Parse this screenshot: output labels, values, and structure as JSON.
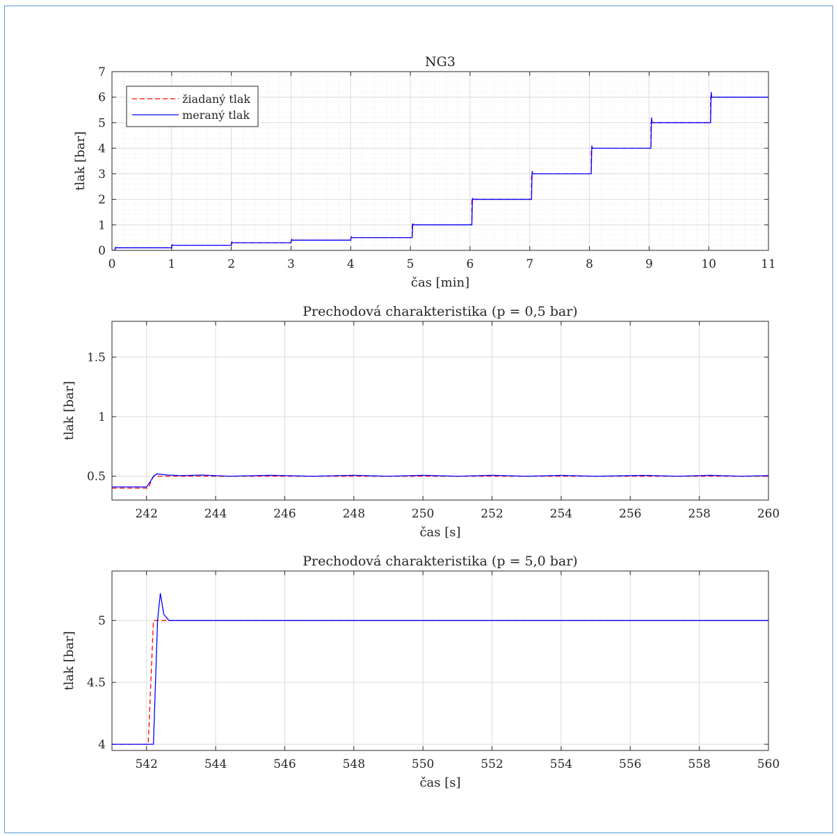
{
  "figure": {
    "frame_color": "#5b9bd5"
  },
  "chart_data": [
    {
      "type": "line",
      "title": "NG3",
      "xlabel": "čas [min]",
      "ylabel": "tlak [bar]",
      "xlim": [
        0,
        11
      ],
      "ylim": [
        0,
        7
      ],
      "xticks": [
        0,
        1,
        2,
        3,
        4,
        5,
        6,
        7,
        8,
        9,
        10,
        11
      ],
      "yticks": [
        0,
        1,
        2,
        3,
        4,
        5,
        6,
        7
      ],
      "grid": true,
      "minor_grid": true,
      "legend_position": "top-left",
      "series": [
        {
          "name": "žiadaný tlak",
          "color": "#ff0000",
          "style": "dashed",
          "x": [
            0,
            0.05,
            0.05,
            1.0,
            1.0,
            2.0,
            2.0,
            3.0,
            3.0,
            4.0,
            4.0,
            5.03,
            5.03,
            6.03,
            6.03,
            7.03,
            7.03,
            8.03,
            8.03,
            9.03,
            9.03,
            10.03,
            10.03,
            11
          ],
          "y": [
            0,
            0,
            0.1,
            0.1,
            0.2,
            0.2,
            0.3,
            0.3,
            0.4,
            0.4,
            0.5,
            0.5,
            1.0,
            1.0,
            2.0,
            2.0,
            3.0,
            3.0,
            4.0,
            4.0,
            5.0,
            5.0,
            6.0,
            6.0
          ]
        },
        {
          "name": "meraný tlak",
          "color": "#0000ff",
          "style": "solid",
          "x": [
            0,
            0.05,
            0.06,
            0.07,
            1.0,
            1.01,
            1.02,
            2.0,
            2.01,
            2.02,
            3.0,
            3.01,
            3.02,
            4.0,
            4.01,
            4.02,
            5.03,
            5.04,
            5.05,
            6.03,
            6.04,
            6.05,
            7.03,
            7.04,
            7.05,
            8.03,
            8.04,
            8.05,
            9.03,
            9.04,
            9.05,
            10.03,
            10.04,
            10.05,
            11
          ],
          "y": [
            0,
            0,
            0.12,
            0.1,
            0.1,
            0.22,
            0.2,
            0.2,
            0.33,
            0.3,
            0.3,
            0.43,
            0.4,
            0.4,
            0.53,
            0.5,
            0.5,
            1.05,
            1.0,
            1.0,
            2.05,
            2.0,
            2.0,
            3.1,
            3.0,
            3.0,
            4.1,
            4.0,
            4.0,
            5.2,
            5.0,
            5.0,
            6.2,
            6.0,
            6.0
          ]
        }
      ]
    },
    {
      "type": "line",
      "title": "Prechodová charakteristika (p = 0,5 bar)",
      "xlabel": "čas [s]",
      "ylabel": "tlak [bar]",
      "xlim": [
        241,
        260
      ],
      "ylim": [
        0.3,
        1.8
      ],
      "xticks": [
        242,
        244,
        246,
        248,
        250,
        252,
        254,
        256,
        258,
        260
      ],
      "yticks": [
        0.5,
        1,
        1.5
      ],
      "ytick_labels": [
        "0.5",
        "1",
        "1.5"
      ],
      "grid": true,
      "series": [
        {
          "name": "žiadaný tlak",
          "color": "#ff0000",
          "style": "dashed",
          "x": [
            241,
            242.05,
            242.2,
            260
          ],
          "y": [
            0.4,
            0.4,
            0.5,
            0.5
          ]
        },
        {
          "name": "meraný tlak",
          "color": "#0000ff",
          "style": "solid",
          "x": [
            241,
            242.0,
            242.1,
            242.2,
            242.3,
            242.6,
            243.0,
            243.6,
            244.4,
            245.6,
            246.8,
            248.0,
            249.0,
            250.0,
            251.0,
            252.0,
            253.0,
            254.0,
            255.0,
            256.4,
            257.4,
            258.3,
            259.2,
            260
          ],
          "y": [
            0.41,
            0.41,
            0.45,
            0.5,
            0.52,
            0.51,
            0.505,
            0.51,
            0.5,
            0.508,
            0.5,
            0.508,
            0.5,
            0.508,
            0.5,
            0.508,
            0.5,
            0.507,
            0.5,
            0.507,
            0.5,
            0.508,
            0.5,
            0.505
          ]
        }
      ]
    },
    {
      "type": "line",
      "title": "Prechodová charakteristika (p = 5,0 bar)",
      "xlabel": "čas [s]",
      "ylabel": "tlak [bar]",
      "xlim": [
        541,
        560
      ],
      "ylim": [
        3.95,
        5.4
      ],
      "xticks": [
        542,
        544,
        546,
        548,
        550,
        552,
        554,
        556,
        558,
        560
      ],
      "yticks": [
        4,
        4.5,
        5
      ],
      "ytick_labels": [
        "4",
        "4.5",
        "5"
      ],
      "grid": true,
      "series": [
        {
          "name": "žiadaný tlak",
          "color": "#ff0000",
          "style": "dashed",
          "x": [
            541,
            542.05,
            542.2,
            560
          ],
          "y": [
            4.0,
            4.0,
            5.0,
            5.0
          ]
        },
        {
          "name": "meraný tlak",
          "color": "#0000ff",
          "style": "solid",
          "x": [
            541,
            542.2,
            542.32,
            542.4,
            542.5,
            542.65,
            543.0,
            544.0,
            546.0,
            548.0,
            550.0,
            552.0,
            554.0,
            556.0,
            558.0,
            560
          ],
          "y": [
            4.0,
            4.0,
            5.0,
            5.22,
            5.05,
            5.0,
            5.0,
            5.0,
            5.0,
            5.0,
            5.0,
            5.0,
            5.0,
            5.0,
            5.0,
            5.0
          ]
        }
      ]
    }
  ]
}
